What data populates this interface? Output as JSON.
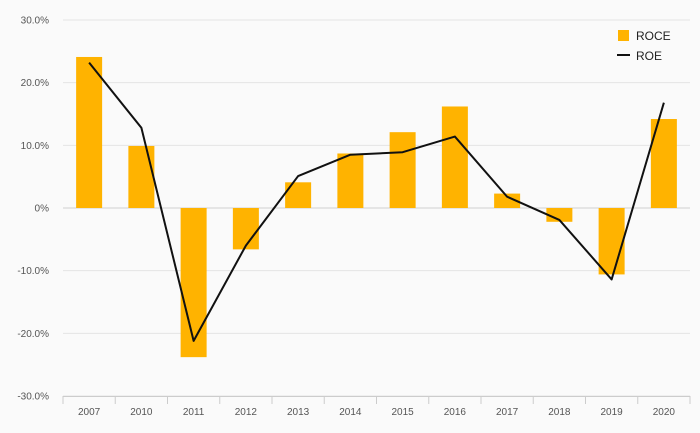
{
  "chart_data": {
    "type": "bar",
    "title": "",
    "xlabel": "",
    "ylabel": "",
    "categories": [
      "2007",
      "2010",
      "2011",
      "2012",
      "2013",
      "2014",
      "2015",
      "2016",
      "2017",
      "2018",
      "2019",
      "2020"
    ],
    "ylim": [
      -0.3,
      0.3
    ],
    "yticks": [
      {
        "value": 0.3,
        "label": "30.0%"
      },
      {
        "value": 0.2,
        "label": "20.0%"
      },
      {
        "value": 0.1,
        "label": "10.0%"
      },
      {
        "value": 0.0,
        "label": "0%"
      },
      {
        "value": -0.1,
        "label": "-10.0%"
      },
      {
        "value": -0.2,
        "label": "-20.0%"
      },
      {
        "value": -0.3,
        "label": "-30.0%"
      }
    ],
    "series": [
      {
        "name": "ROCE",
        "kind": "bar",
        "color": "#FFB300",
        "values": [
          0.241,
          0.099,
          -0.238,
          -0.066,
          0.041,
          0.087,
          0.121,
          0.162,
          0.023,
          -0.022,
          -0.106,
          0.142
        ]
      },
      {
        "name": "ROE",
        "kind": "line",
        "color": "#111111",
        "values": [
          0.232,
          0.128,
          -0.212,
          -0.06,
          0.051,
          0.085,
          0.089,
          0.114,
          0.018,
          -0.019,
          -0.114,
          0.168
        ]
      }
    ],
    "grid": true,
    "legend_position": "top-right"
  }
}
